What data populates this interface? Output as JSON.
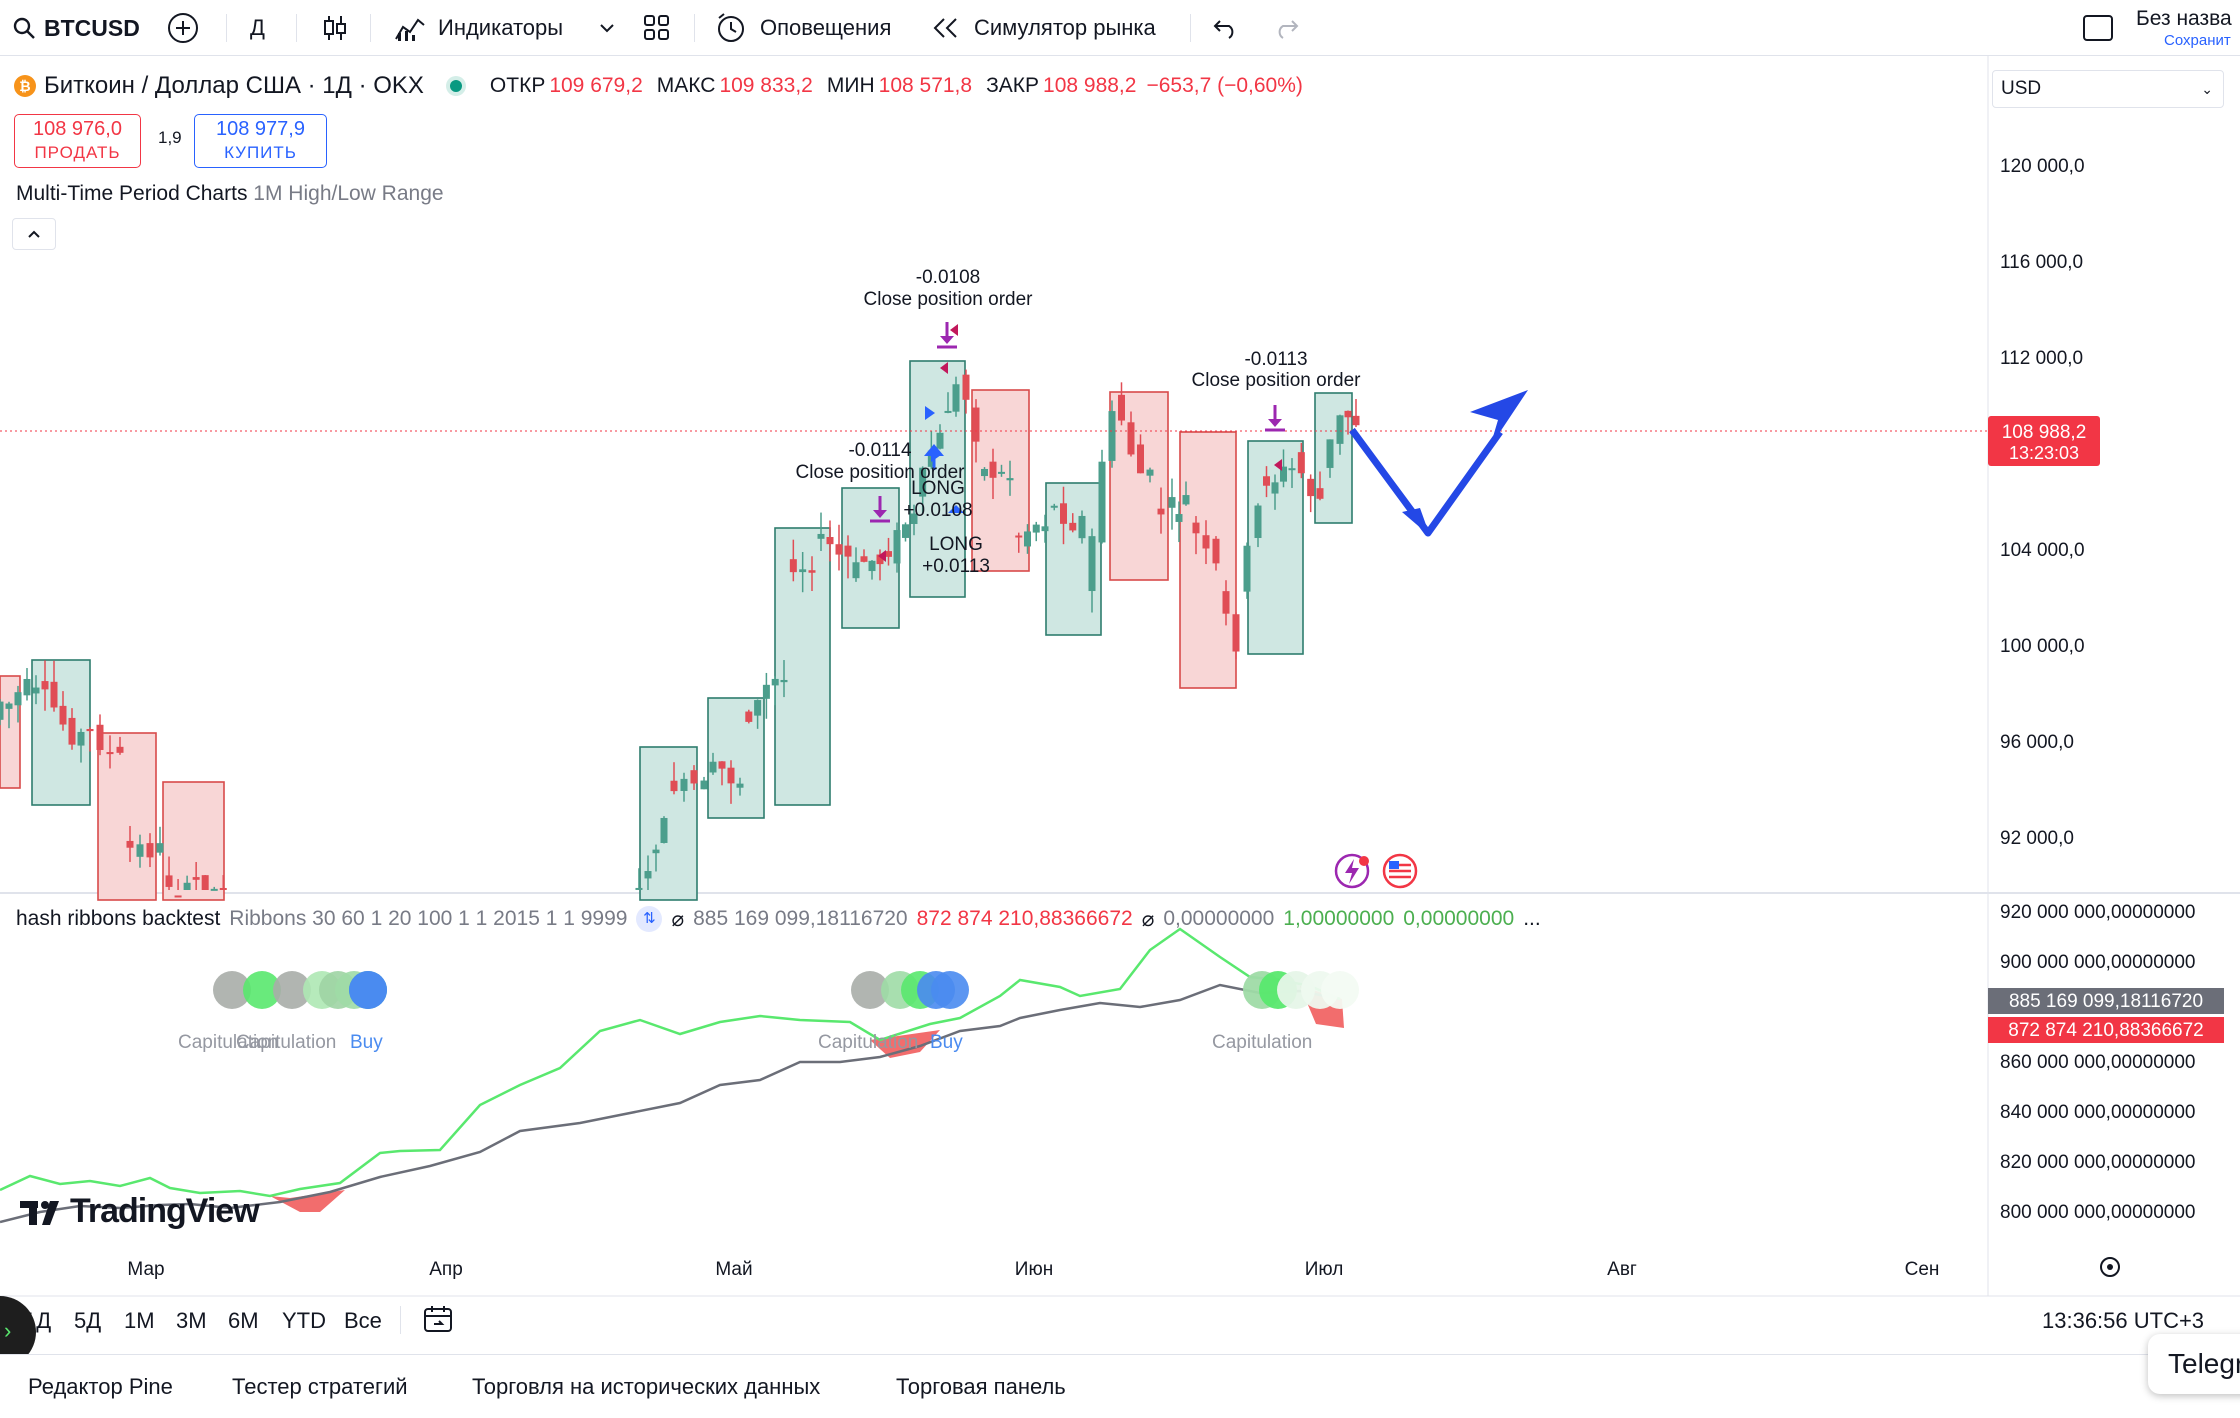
{
  "toolbar": {
    "symbol": "BTCUSD",
    "interval": "Д",
    "indicators": "Индикаторы",
    "alerts": "Оповещения",
    "replay": "Симулятор рынка",
    "layout_name": "Без назва",
    "layout_save": "Сохранит"
  },
  "legend": {
    "title": "Биткоин / Доллар США · 1Д · OKX",
    "open_label": "ОТКР",
    "open": "109 679,2",
    "high_label": "МАКС",
    "high": "109 833,2",
    "low_label": "МИН",
    "low": "108 571,8",
    "close_label": "ЗАКР",
    "close": "108 988,2",
    "change": "−653,7 (−0,60%)"
  },
  "currency": "USD",
  "trade": {
    "sell_price": "108 976,0",
    "sell_label": "ПРОДАТЬ",
    "spread": "1,9",
    "buy_price": "108 977,9",
    "buy_label": "КУПИТЬ"
  },
  "study1": {
    "name": "Multi-Time Period Charts",
    "params": "1M High/Low Range"
  },
  "study2": {
    "name": "hash ribbons backtest",
    "params": "Ribbons 30 60 1 20 100 1 1 2015 1 1 9999",
    "values": [
      {
        "text": "885 169 099,18116720",
        "color": "#787b86"
      },
      {
        "text": "872 874 210,88366672",
        "color": "#f23645"
      },
      {
        "text": "0,00000000",
        "color": "#787b86"
      },
      {
        "text": "1,00000000",
        "color": "#4caf50"
      },
      {
        "text": "0,00000000",
        "color": "#4caf50"
      }
    ],
    "ellipsis": "..."
  },
  "price_axis": [
    "120 000,0",
    "116 000,0",
    "112 000,0",
    "104 000,0",
    "100 000,0",
    "96 000,0",
    "92 000,0"
  ],
  "price_tag": {
    "price": "108 988,2",
    "countdown": "13:23:03"
  },
  "osc_axis": [
    "920 000 000,00000000",
    "900 000 000,00000000",
    "860 000 000,00000000",
    "840 000 000,00000000",
    "820 000 000,00000000",
    "800 000 000,00000000"
  ],
  "osc_tags": {
    "grey": "885 169 099,18116720",
    "red": "872 874 210,88366672"
  },
  "time_axis": [
    "Мар",
    "Апр",
    "Май",
    "Июн",
    "Июл",
    "Авг",
    "Сен"
  ],
  "annotations": [
    {
      "value": "-0.0108",
      "text": "Close position order"
    },
    {
      "value": "-0.0113",
      "text": "Close position order"
    },
    {
      "value": "-0.0114",
      "text": "Close position order"
    },
    {
      "value": "+0.0108",
      "text": "LONG"
    },
    {
      "value": "+0.0113",
      "text": "LONG"
    }
  ],
  "ribbon_labels": {
    "capitulation": "Capitulation",
    "buy": "Buy",
    "combo1": "Capitulation",
    "combo2": "Capitulation",
    "combo3": "Capitulation"
  },
  "ranges": [
    "1Д",
    "5Д",
    "1М",
    "3М",
    "6М",
    "YTD",
    "Все"
  ],
  "clock": "13:36:56 UTC+3",
  "bottom_tabs": [
    "Редактор Pine",
    "Тестер стратегий",
    "Торговля на исторических данных",
    "Торговая панель"
  ],
  "brand": "TradingView",
  "telegram": "Telegr",
  "colors": {
    "up": "#4c9e8c",
    "down": "#e04d55",
    "accent": "#2962ff",
    "ribbon_green": "#59e86e",
    "ribbon_grey": "#6b6e78"
  }
}
